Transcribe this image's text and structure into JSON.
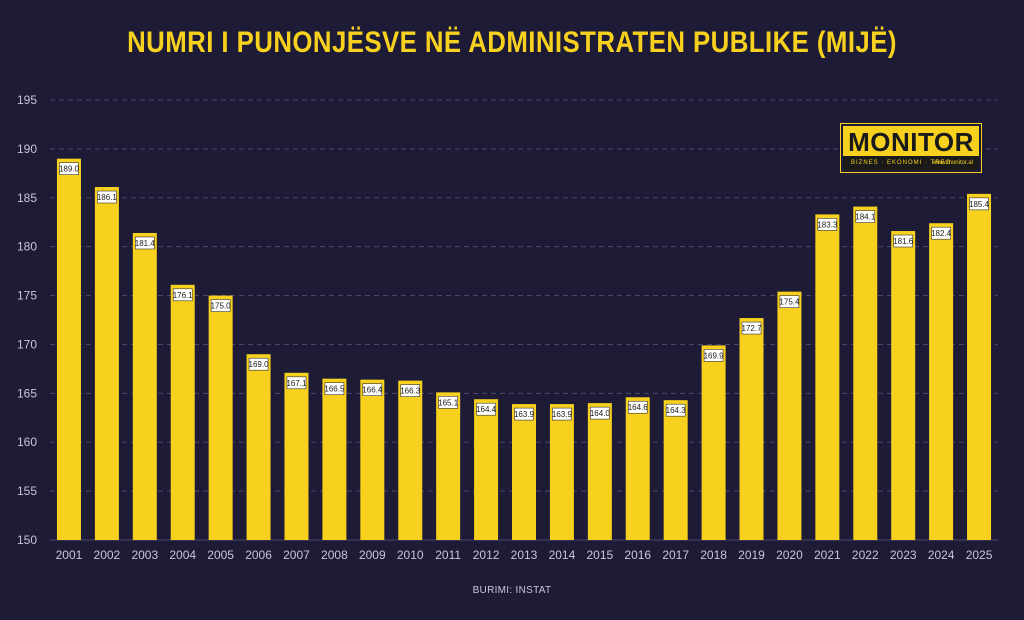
{
  "title": "NUMRI I PUNONJËSVE NË ADMINISTRATEN PUBLIKE (MIJË)",
  "source": "BURIMI: INSTAT",
  "logo": {
    "word": "MONITOR",
    "tagline": "BIZNES · EKONOMI · TREG",
    "url": "www.monitor.al"
  },
  "colors": {
    "background": "#1d1b35",
    "bar": "#f7d11e",
    "grid": "#4a4868",
    "axis_text": "#c9c6d6"
  },
  "chart_data": {
    "type": "bar",
    "title": "NUMRI I PUNONJËSVE NË ADMINISTRATEN PUBLIKE (MIJË)",
    "xlabel": "",
    "ylabel": "",
    "ylim": [
      150,
      195
    ],
    "yticks": [
      150,
      155,
      160,
      165,
      170,
      175,
      180,
      185,
      190,
      195
    ],
    "grid": true,
    "categories": [
      "2001",
      "2002",
      "2003",
      "2004",
      "2005",
      "2006",
      "2007",
      "2008",
      "2009",
      "2010",
      "2011",
      "2012",
      "2013",
      "2014",
      "2015",
      "2016",
      "2017",
      "2018",
      "2019",
      "2020",
      "2021",
      "2022",
      "2023",
      "2024",
      "2025"
    ],
    "values": [
      189.0,
      186.1,
      181.4,
      176.1,
      175.0,
      169.0,
      167.1,
      166.5,
      166.4,
      166.3,
      165.1,
      164.4,
      163.9,
      163.9,
      164.0,
      164.6,
      164.3,
      169.9,
      172.7,
      175.4,
      183.3,
      184.1,
      181.6,
      182.4,
      185.4
    ],
    "labels": [
      "189.0",
      "186.1",
      "181.4",
      "176.1",
      "175.0",
      "169.0",
      "167.1",
      "166.5",
      "166.4",
      "166.3",
      "165.1",
      "164.4",
      "163.9",
      "163.9",
      "164.0",
      "164.6",
      "164.3",
      "169.9",
      "172.7",
      "175.4",
      "183.3",
      "184.1",
      "181.6",
      "182.4",
      "185.4"
    ]
  }
}
